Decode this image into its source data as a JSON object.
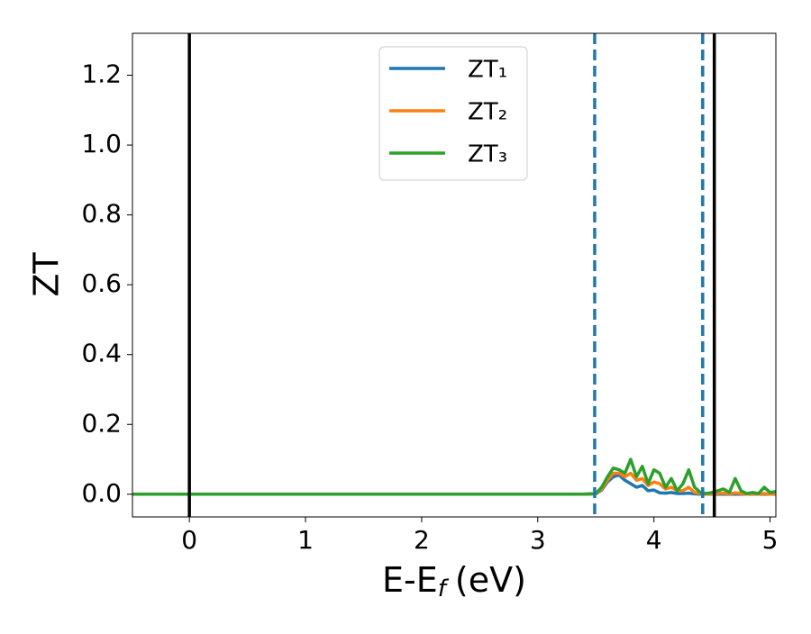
{
  "chart_data": {
    "type": "line",
    "xlabel": {
      "main": "E-E",
      "sub": "f",
      "unit": "(eV)"
    },
    "ylabel": "ZT",
    "xlim": [
      -0.49,
      5.05
    ],
    "ylim": [
      -0.065,
      1.32
    ],
    "xticks": [
      0,
      1,
      2,
      3,
      4,
      5
    ],
    "yticks": [
      {
        "value": 0,
        "label": "0.0"
      },
      {
        "value": 0.2,
        "label": "0.2"
      },
      {
        "value": 0.4,
        "label": "0.4"
      },
      {
        "value": 0.6,
        "label": "0.6"
      },
      {
        "value": 0.8,
        "label": "0.8"
      },
      {
        "value": 1.0,
        "label": "1.0"
      },
      {
        "value": 1.2,
        "label": "1.2"
      }
    ],
    "legend_position": "upper center",
    "x": [
      -0.49,
      3.4,
      3.5,
      3.55,
      3.6,
      3.65,
      3.7,
      3.75,
      3.8,
      3.85,
      3.9,
      3.95,
      4.0,
      4.05,
      4.1,
      4.15,
      4.2,
      4.25,
      4.3,
      4.35,
      4.4,
      4.45,
      4.5,
      4.55,
      4.6,
      4.65,
      4.7,
      4.75,
      4.8,
      4.85,
      4.9,
      4.95,
      5.0,
      5.05
    ],
    "series": [
      {
        "name": "ZT₁",
        "color": "#1f77b4",
        "values": [
          0,
          0,
          0.001,
          0.012,
          0.035,
          0.05,
          0.055,
          0.04,
          0.03,
          0.02,
          0.025,
          0.01,
          0.012,
          0.004,
          0.003,
          0.005,
          0.002,
          0.002,
          0.003,
          0.001,
          0,
          0,
          0,
          0,
          0,
          0,
          0,
          0,
          0,
          0,
          0,
          0,
          0,
          0
        ]
      },
      {
        "name": "ZT₂",
        "color": "#ff7f0e",
        "values": [
          0,
          0,
          0.001,
          0.015,
          0.04,
          0.06,
          0.06,
          0.05,
          0.06,
          0.04,
          0.045,
          0.025,
          0.035,
          0.03,
          0.015,
          0.02,
          0.01,
          0.01,
          0.02,
          0.005,
          0.002,
          0,
          0.001,
          0.002,
          0.003,
          0.001,
          0.004,
          0.002,
          0,
          0.001,
          0,
          0.002,
          0,
          0.001
        ]
      },
      {
        "name": "ZT₃",
        "color": "#2ca02c",
        "values": [
          0,
          0,
          0.002,
          0.02,
          0.05,
          0.075,
          0.07,
          0.06,
          0.1,
          0.05,
          0.08,
          0.03,
          0.07,
          0.06,
          0.02,
          0.045,
          0.01,
          0.03,
          0.07,
          0.02,
          0.005,
          0.002,
          0.005,
          0.01,
          0.015,
          0.005,
          0.045,
          0.01,
          0.002,
          0.005,
          0.002,
          0.02,
          0.005,
          0.008
        ]
      }
    ],
    "vlines": [
      {
        "x": 0,
        "color": "#000000",
        "style": "solid"
      },
      {
        "x": 4.52,
        "color": "#000000",
        "style": "solid"
      },
      {
        "x": 3.49,
        "color": "#1f77b4",
        "style": "dashed"
      },
      {
        "x": 4.42,
        "color": "#1f77b4",
        "style": "dashed"
      }
    ]
  }
}
